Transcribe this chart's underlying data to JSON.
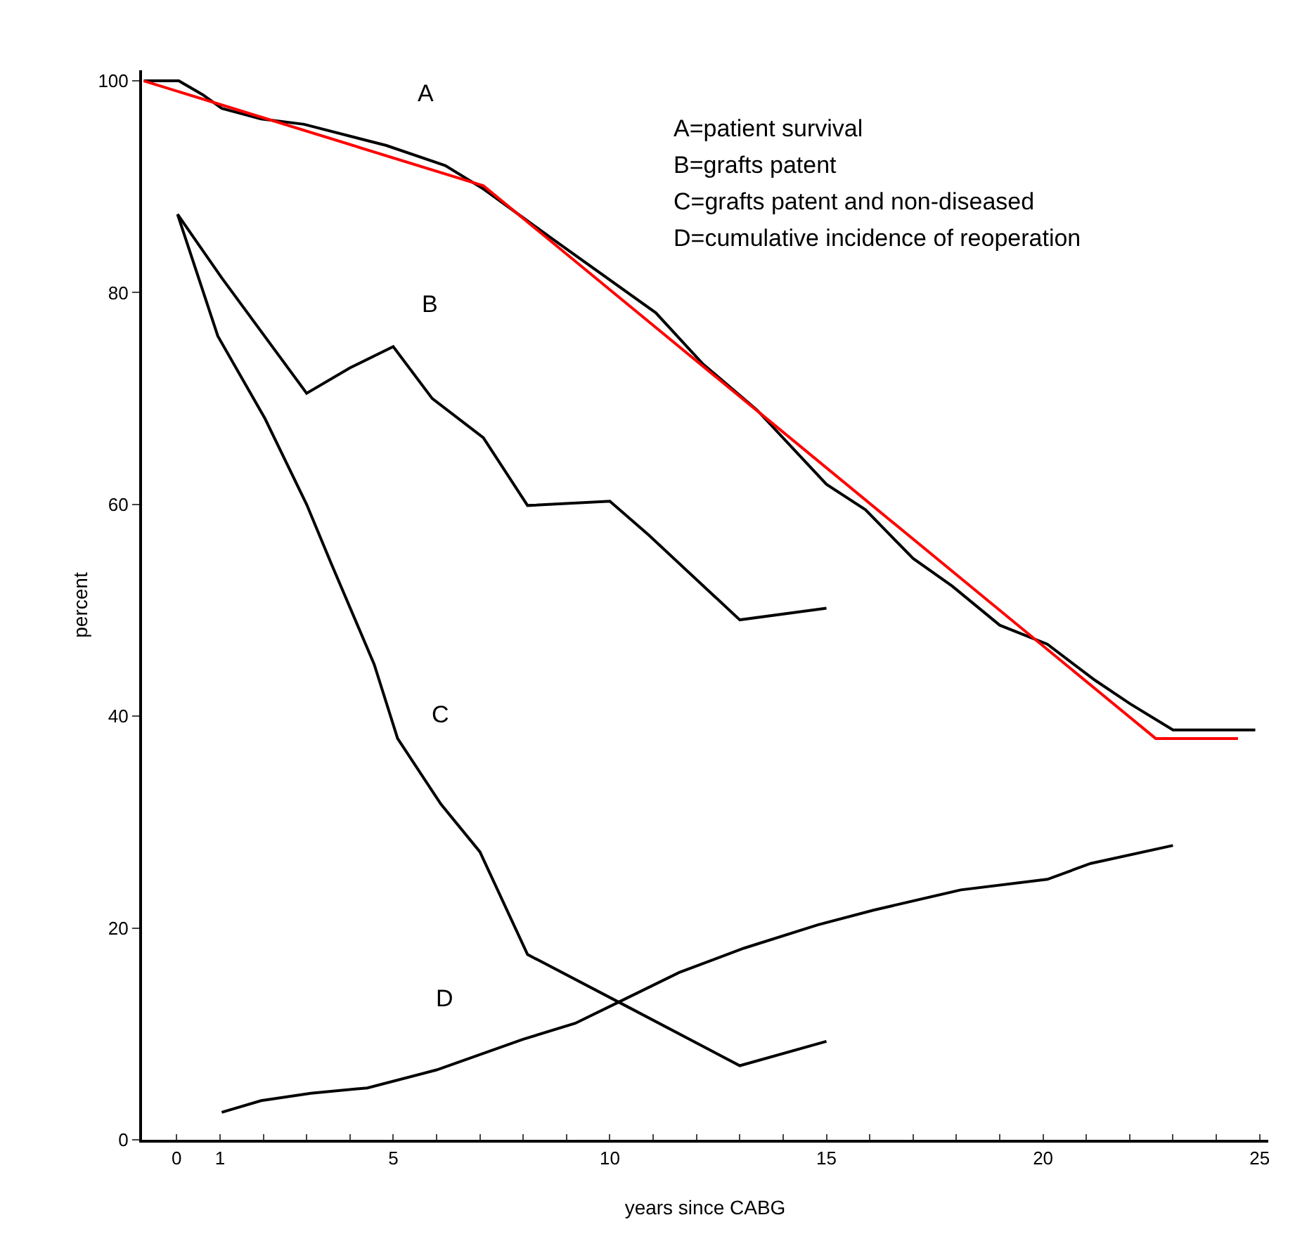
{
  "chart_data": {
    "type": "line",
    "xlabel": "years since CABG",
    "ylabel": "percent",
    "xlim": [
      -0.8,
      25.2
    ],
    "ylim": [
      0,
      101
    ],
    "xticks": [
      0,
      1,
      {
        "value": 2,
        "label": null
      },
      {
        "value": 3,
        "label": null
      },
      {
        "value": 4,
        "label": null
      },
      5,
      {
        "value": 6,
        "label": null
      },
      {
        "value": 7,
        "label": null
      },
      {
        "value": 8,
        "label": null
      },
      {
        "value": 9,
        "label": null
      },
      10,
      {
        "value": 11,
        "label": null
      },
      {
        "value": 12,
        "label": null
      },
      {
        "value": 13,
        "label": null
      },
      {
        "value": 14,
        "label": null
      },
      15,
      {
        "value": 16,
        "label": null
      },
      {
        "value": 17,
        "label": null
      },
      {
        "value": 18,
        "label": null
      },
      {
        "value": 19,
        "label": null
      },
      20,
      {
        "value": 21,
        "label": null
      },
      {
        "value": 22,
        "label": null
      },
      {
        "value": 23,
        "label": null
      },
      {
        "value": 24,
        "label": null
      },
      25
    ],
    "yticks": [
      0,
      20,
      40,
      60,
      80,
      100
    ],
    "grid": false,
    "legend": false,
    "marker": "none",
    "line_style": "solid",
    "series": [
      {
        "name": "A",
        "color": "#000000",
        "x": [
          -0.76,
          0.05,
          0.6,
          1.04,
          1.95,
          2.94,
          4.84,
          6.2,
          7.08,
          8.7,
          11.06,
          12.14,
          13.4,
          15.0,
          15.9,
          17.0,
          17.9,
          19.0,
          20.1,
          21.2,
          22.0,
          23.0,
          24.9
        ],
        "values": [
          100,
          100,
          98.7,
          97.4,
          96.4,
          95.9,
          93.9,
          92,
          89.8,
          85,
          78.1,
          73.3,
          68.9,
          61.9,
          59.5,
          54.9,
          52.3,
          48.6,
          46.8,
          43.4,
          41.2,
          38.7,
          38.7
        ]
      },
      {
        "name": "B",
        "color": "#000000",
        "x": [
          0.02,
          1.04,
          3.0,
          4.0,
          5.0,
          5.9,
          7.08,
          8.1,
          10.0,
          10.9,
          13.0,
          15.0
        ],
        "values": [
          87.4,
          81.4,
          70.5,
          72.9,
          74.9,
          70.0,
          66.3,
          59.9,
          60.3,
          57.1,
          49.1,
          50.2
        ]
      },
      {
        "name": "C",
        "color": "#000000",
        "x": [
          0.02,
          0.95,
          2.04,
          3.0,
          3.57,
          4.56,
          5.1,
          6.1,
          7.0,
          8.1,
          10.3,
          13.0,
          15.0
        ],
        "values": [
          87.4,
          75.9,
          68.1,
          60.0,
          54.4,
          44.9,
          37.9,
          31.7,
          27.2,
          17.5,
          12.8,
          7.0,
          9.3
        ]
      },
      {
        "name": "D",
        "color": "#000000",
        "x": [
          1.04,
          1.95,
          3.1,
          4.4,
          6.0,
          8.0,
          9.2,
          10.3,
          11.6,
          13.1,
          14.8,
          16.1,
          18.1,
          20.1,
          21.1,
          23.0
        ],
        "values": [
          2.6,
          3.7,
          4.4,
          4.9,
          6.6,
          9.5,
          11.0,
          13.2,
          15.8,
          18.1,
          20.3,
          21.7,
          23.6,
          24.6,
          26.1,
          27.8
        ]
      },
      {
        "type": "line",
        "color": "#ff0000",
        "x": [
          -0.76,
          7.08,
          22.6,
          24.5
        ],
        "values": [
          100,
          90.1,
          37.9,
          37.9
        ]
      }
    ],
    "annotations": [
      "A=patient survival",
      "B=grafts patent",
      "C=grafts patent and non-diseased",
      "D=cumulative incidence of reoperation"
    ]
  }
}
